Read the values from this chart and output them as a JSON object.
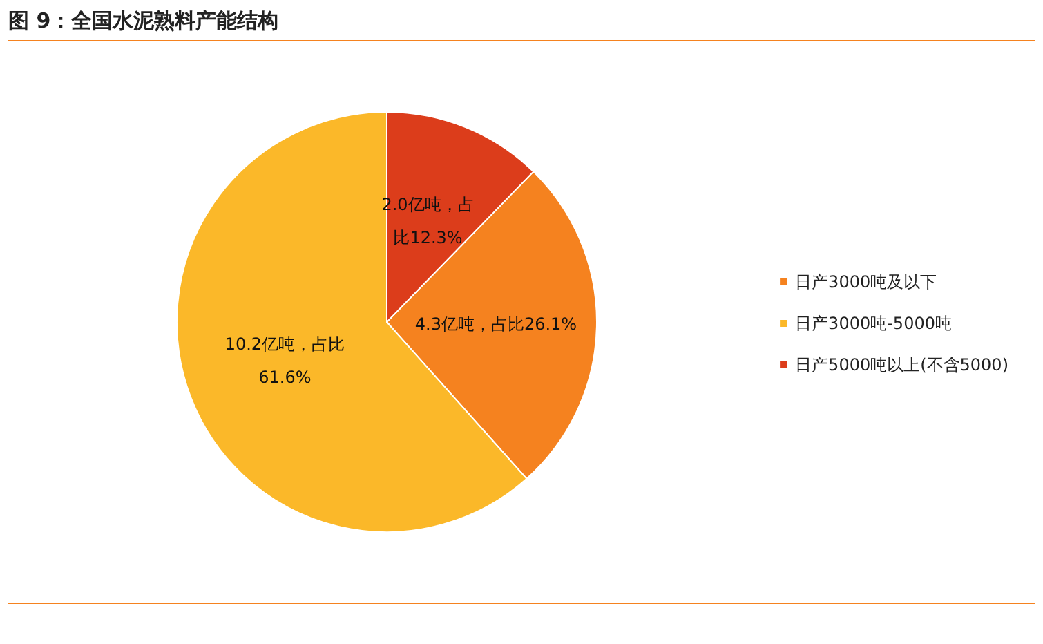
{
  "chart_data": {
    "type": "pie",
    "title": "图 9：全国水泥熟料产能结构",
    "categories": [
      "日产3000吨及以下",
      "日产3000吨-5000吨",
      "日产5000吨以上(不含5000)"
    ],
    "values": [
      26.1,
      61.6,
      12.3
    ],
    "colors": [
      "#f5821f",
      "#fbb829",
      "#dc3d1b"
    ],
    "value_labels": [
      "4.3亿吨，占比26.1%",
      "10.2亿吨，占比61.6%",
      "2.0亿吨，占比12.3%"
    ],
    "legend": "right"
  }
}
